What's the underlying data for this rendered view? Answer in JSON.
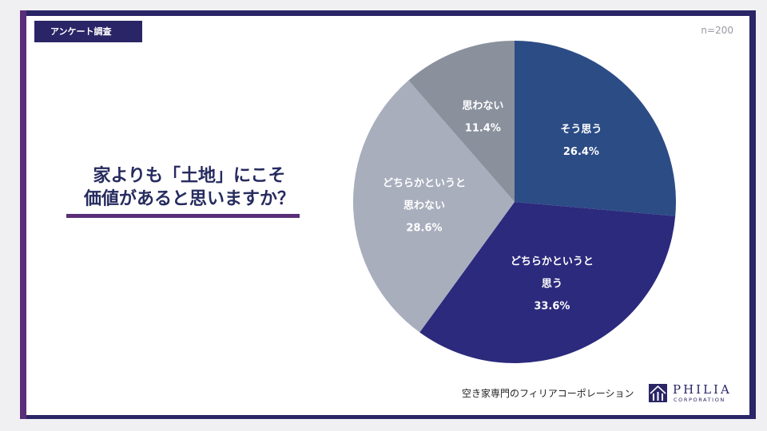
{
  "tag": {
    "label": "アンケート調査"
  },
  "sample_size": "n=200",
  "question": {
    "line1": "家よりも「土地」にこそ",
    "line2": "価値があると思いますか？"
  },
  "chart_data": {
    "type": "pie",
    "slices": [
      {
        "label": "そう思う",
        "label_lines": [
          "そう思う"
        ],
        "value": 26.4,
        "value_label": "26.4%",
        "color": "#2c4c86"
      },
      {
        "label": "どちらかというと思う",
        "label_lines": [
          "どちらかというと",
          "思う"
        ],
        "value": 33.6,
        "value_label": "33.6%",
        "color": "#2c2a7c"
      },
      {
        "label": "どちらかというと思わない",
        "label_lines": [
          "どちらかというと",
          "思わない"
        ],
        "value": 28.6,
        "value_label": "28.6%",
        "color": "#a8aebc"
      },
      {
        "label": "思わない",
        "label_lines": [
          "思わない"
        ],
        "value": 11.4,
        "value_label": "11.4%",
        "color": "#8a919d"
      }
    ]
  },
  "footer": {
    "company_name": "空き家専門のフィリアコーポレーション",
    "logo_name": "PHILIA",
    "logo_sub": "CORPORATION",
    "brand_color": "#2a2566",
    "accent_color": "#5a2f7a"
  }
}
